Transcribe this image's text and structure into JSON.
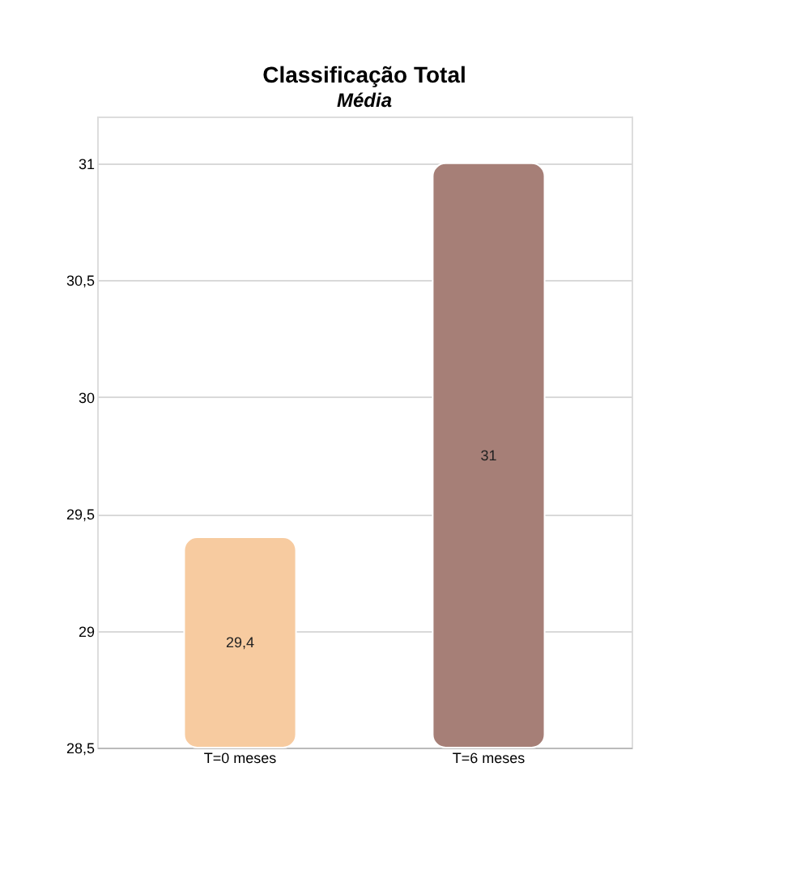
{
  "chart_data": {
    "type": "bar",
    "title": "Classificação Total",
    "subtitle": "Média",
    "categories": [
      "T=0 meses",
      "T=6 meses"
    ],
    "values": [
      29.4,
      31
    ],
    "colors": [
      "#f7cba0",
      "#a67f77"
    ],
    "value_labels": [
      "29,4",
      "31"
    ],
    "ylim": [
      28.5,
      31.2
    ],
    "yticks": [
      {
        "value": 28.5,
        "label": "28,5"
      },
      29,
      {
        "value": 29.5,
        "label": "29,5"
      },
      30,
      {
        "value": 30.5,
        "label": "30,5"
      },
      31
    ],
    "grid": "y"
  }
}
